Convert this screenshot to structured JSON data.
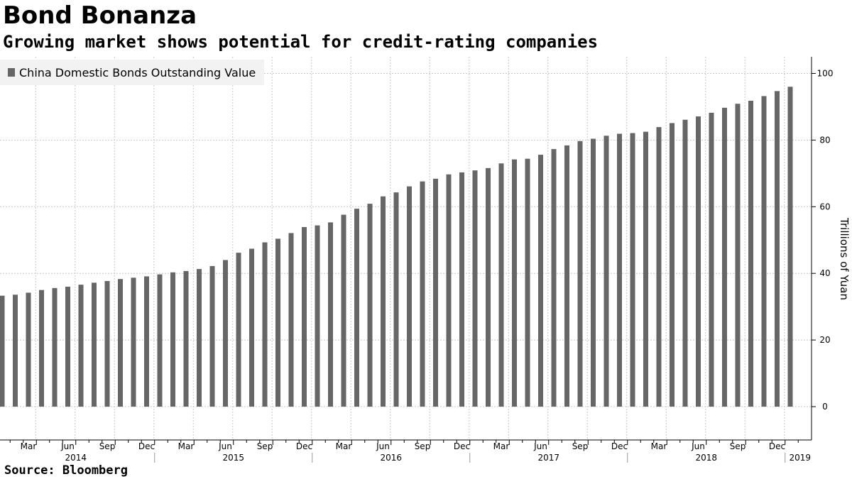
{
  "header": {
    "title": "Bond Bonanza",
    "subtitle": "Growing market shows potential for credit-rating companies"
  },
  "footer": {
    "source": "Source:  Bloomberg"
  },
  "colors": {
    "bar": "#666666",
    "legend_bg": "#f2f2f2"
  },
  "chart_data": {
    "type": "bar",
    "title": "Bond Bonanza",
    "subtitle": "Growing market shows potential for credit-rating companies",
    "ylabel": "Trillions of Yuan",
    "xlabel": "",
    "ylim": [
      -10,
      105
    ],
    "yticks": [
      0,
      20,
      40,
      60,
      80,
      100
    ],
    "y_axis_position": "right",
    "grid": true,
    "legend": {
      "position": "top-left"
    },
    "start_month": "2014-01",
    "month_tick_labels": [
      "Mar",
      "Jun",
      "Sep",
      "Dec",
      "Mar",
      "Jun",
      "Sep",
      "Dec",
      "Mar",
      "Jun",
      "Sep",
      "Dec",
      "Mar",
      "Jun",
      "Sep",
      "Dec",
      "Mar",
      "Jun",
      "Sep",
      "Dec"
    ],
    "year_labels": [
      "2014",
      "2015",
      "2016",
      "2017",
      "2018",
      "2019"
    ],
    "series": [
      {
        "name": "China Domestic Bonds Outstanding Value",
        "values": [
          33.3,
          33.6,
          34.2,
          35.0,
          35.6,
          36.0,
          36.6,
          37.2,
          37.7,
          38.3,
          38.7,
          39.1,
          39.7,
          40.3,
          40.7,
          41.3,
          42.2,
          44.0,
          46.2,
          47.4,
          49.3,
          50.4,
          52.1,
          53.9,
          54.4,
          55.3,
          57.6,
          59.4,
          60.9,
          63.1,
          64.3,
          66.1,
          67.6,
          68.4,
          69.7,
          70.3,
          70.9,
          71.6,
          73.0,
          74.2,
          74.4,
          75.6,
          77.3,
          78.4,
          79.7,
          80.4,
          81.3,
          81.9,
          82.1,
          82.5,
          83.9,
          85.1,
          86.1,
          87.1,
          88.2,
          89.7,
          90.9,
          91.8,
          93.2,
          94.7,
          96.0
        ]
      }
    ]
  }
}
